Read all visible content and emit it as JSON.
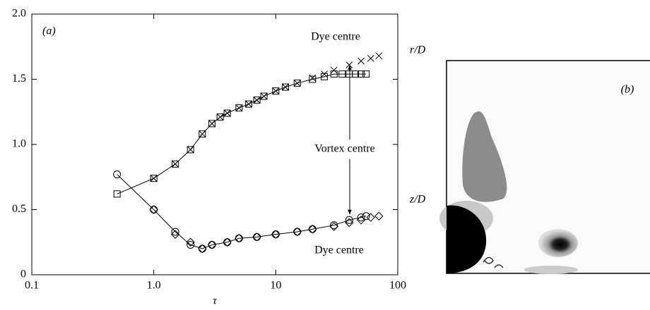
{
  "chart_data": {
    "type": "line",
    "panel_labels": [
      "(a)",
      "(b)"
    ],
    "xlabel": "τ",
    "xlog": true,
    "xlim": [
      0.1,
      100
    ],
    "xticks": [
      0.1,
      {
        "value": 1,
        "label": "1.0"
      },
      10,
      100
    ],
    "ylim": [
      0,
      2
    ],
    "yticks": [
      0,
      0.5,
      {
        "value": 1,
        "label": "1.0"
      },
      1.5,
      {
        "value": 2,
        "label": "2.0"
      }
    ],
    "annotations": [
      "Dye centre",
      "Vortex centre",
      "Dye centre",
      "r/D",
      "z/D"
    ],
    "series": [
      {
        "marker": "square",
        "color": "#000000",
        "line": true,
        "x": [
          0.5,
          1.0,
          1.5,
          2.0,
          2.5,
          3.0,
          3.5,
          4.0,
          5,
          6,
          7,
          8,
          10,
          12,
          15,
          20,
          25,
          30,
          35,
          40,
          45,
          50,
          55
        ],
        "values": [
          0.62,
          0.74,
          0.85,
          0.96,
          1.08,
          1.16,
          1.21,
          1.24,
          1.28,
          1.31,
          1.34,
          1.37,
          1.41,
          1.44,
          1.47,
          1.5,
          1.52,
          1.54,
          1.54,
          1.54,
          1.54,
          1.54,
          1.54
        ]
      },
      {
        "marker": "x",
        "color": "#000000",
        "line": false,
        "x": [
          1.0,
          1.5,
          2.0,
          2.5,
          3.0,
          3.5,
          4.0,
          5,
          6,
          7,
          8,
          10,
          12,
          15,
          20,
          25,
          30,
          40,
          50,
          60,
          70
        ],
        "values": [
          0.74,
          0.85,
          0.96,
          1.08,
          1.16,
          1.21,
          1.24,
          1.28,
          1.31,
          1.34,
          1.37,
          1.41,
          1.44,
          1.47,
          1.51,
          1.54,
          1.57,
          1.61,
          1.64,
          1.66,
          1.68
        ]
      },
      {
        "marker": "circle",
        "color": "#000000",
        "line": true,
        "x": [
          0.5,
          1.0,
          1.5,
          2.0,
          2.5,
          3,
          4,
          5,
          7,
          10,
          15,
          20,
          30,
          40,
          50,
          55
        ],
        "values": [
          0.77,
          0.5,
          0.33,
          0.23,
          0.2,
          0.23,
          0.25,
          0.28,
          0.29,
          0.31,
          0.33,
          0.35,
          0.38,
          0.42,
          0.44,
          0.45
        ]
      },
      {
        "marker": "diamond",
        "color": "#000000",
        "line": false,
        "x": [
          1.0,
          1.5,
          2.0,
          2.5,
          3,
          4,
          5,
          7,
          10,
          15,
          20,
          30,
          40,
          50,
          60,
          70
        ],
        "values": [
          0.5,
          0.31,
          0.25,
          0.2,
          0.23,
          0.25,
          0.28,
          0.29,
          0.31,
          0.33,
          0.35,
          0.37,
          0.4,
          0.42,
          0.44,
          0.45
        ]
      }
    ]
  }
}
